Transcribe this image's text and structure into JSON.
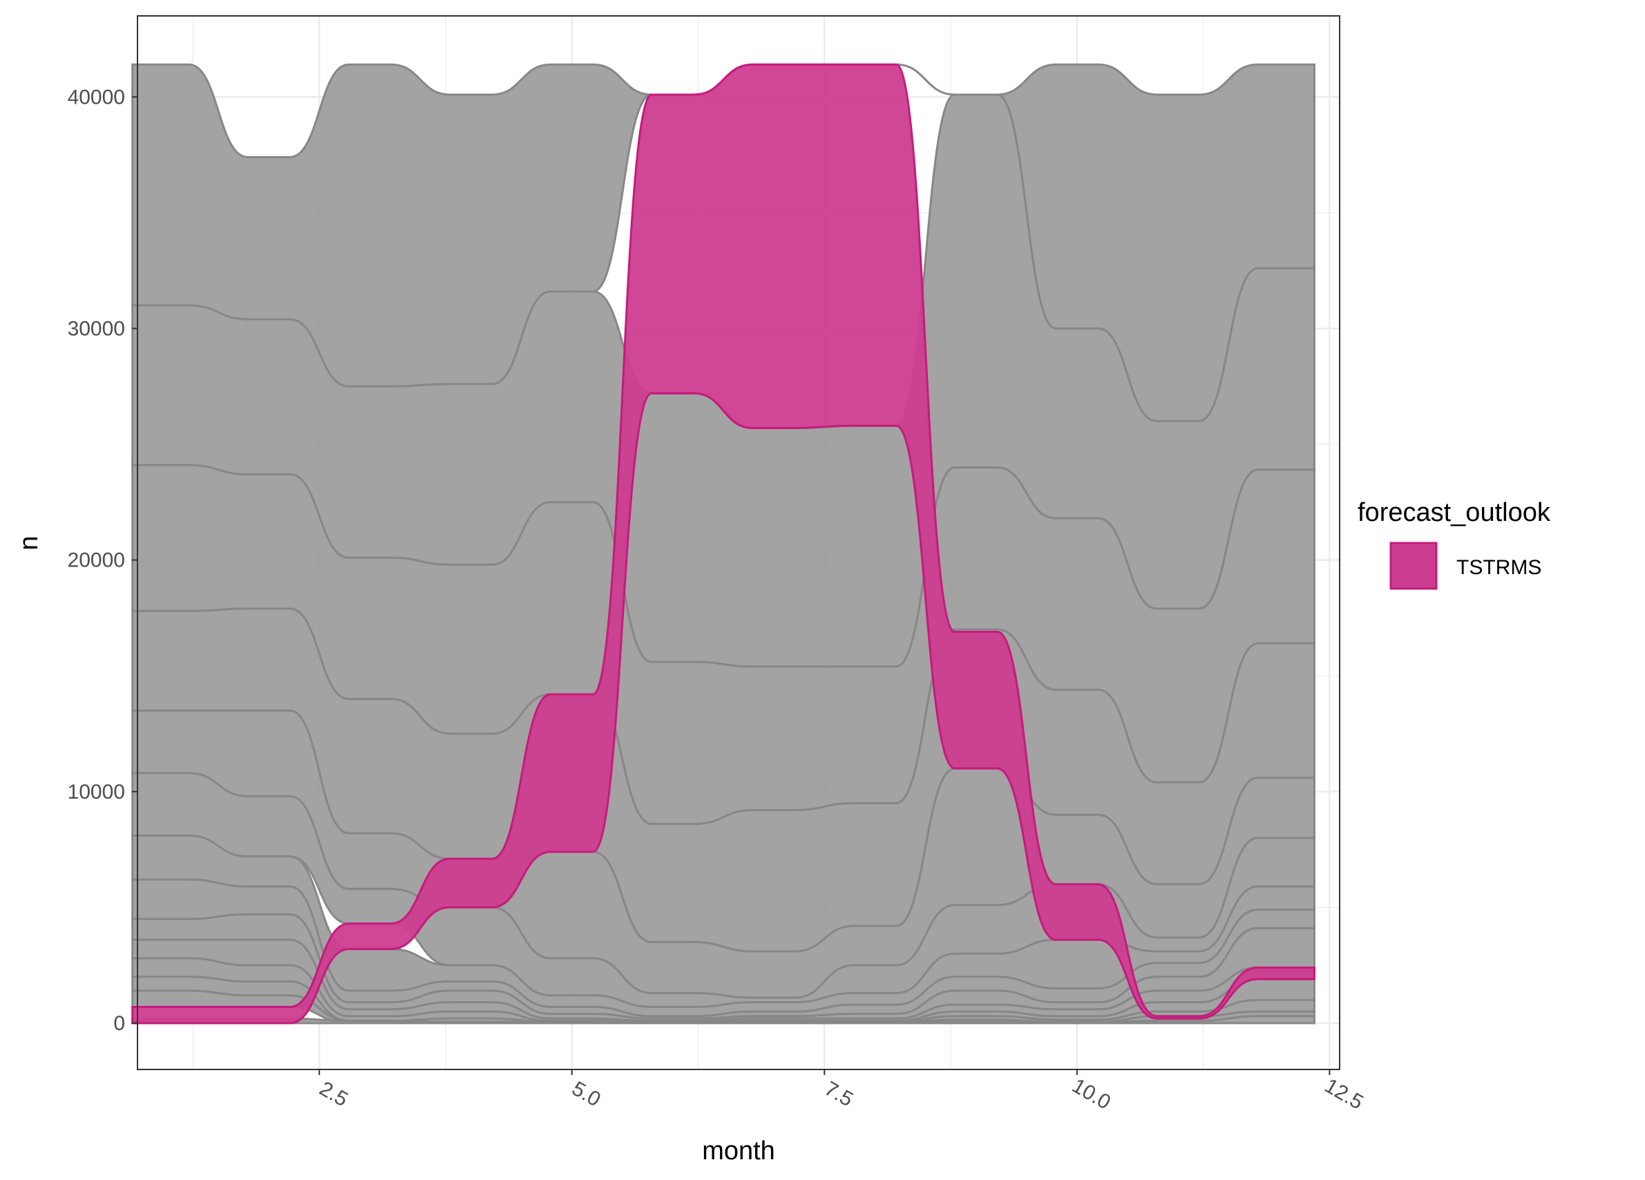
{
  "chart_data": {
    "type": "area",
    "subtype": "bump-chart (ranked stacked flows over months)",
    "title": "",
    "xlabel": "month",
    "ylabel": "n",
    "xlim": [
      0.7,
      12.6
    ],
    "ylim": [
      -2000,
      43500
    ],
    "x_ticks": [
      2.5,
      5.0,
      7.5,
      10.0,
      12.5
    ],
    "x_tick_labels": [
      "2.5",
      "5.0",
      "7.5",
      "10.0",
      "12.5"
    ],
    "y_ticks": [
      0,
      10000,
      20000,
      30000,
      40000
    ],
    "y_tick_labels": [
      "0",
      "10000",
      "20000",
      "30000",
      "40000"
    ],
    "x_tick_label_rotation_deg": -30,
    "grid": true,
    "theme": "bw",
    "colors": {
      "highlight_fill": "#CC3D8F",
      "highlight_stroke": "#C51B7D",
      "other_fill": "#9E9E9E",
      "other_stroke": "#878787",
      "grid": "#EBEBEB",
      "panel_border": "#333333"
    },
    "legend": {
      "title": "forecast_outlook",
      "position": "right",
      "entries": [
        "TSTRMS"
      ]
    },
    "x": [
      1,
      2,
      3,
      4,
      5,
      6,
      7,
      8,
      9,
      10,
      11,
      12
    ],
    "stack_totals": [
      41400,
      37400,
      41400,
      40100,
      41400,
      40100,
      41400,
      41400,
      40100,
      41400,
      40100,
      41400
    ],
    "highlight_series": {
      "name": "TSTRMS",
      "lower": [
        0,
        0,
        3200,
        5000,
        7400,
        27200,
        25700,
        25800,
        11000,
        3600,
        200,
        1900
      ],
      "upper": [
        700,
        700,
        4300,
        7100,
        14200,
        40100,
        41400,
        41400,
        16900,
        6000,
        300,
        2400
      ]
    },
    "other_series": [
      {
        "lower": [
          31000,
          30400,
          27500,
          27600,
          31600,
          40100,
          41400,
          41400,
          40100,
          30000,
          26000,
          32600
        ],
        "upper": [
          41400,
          37400,
          41400,
          40100,
          41400,
          40100,
          41400,
          41400,
          40100,
          41400,
          40100,
          41400
        ]
      },
      {
        "lower": [
          24100,
          23700,
          20100,
          19800,
          22500,
          15600,
          15400,
          15400,
          24000,
          21800,
          17900,
          23900
        ],
        "upper": [
          31000,
          30400,
          27500,
          27600,
          31600,
          27200,
          25700,
          25800,
          40100,
          30000,
          26000,
          32600
        ]
      },
      {
        "lower": [
          17800,
          17900,
          14000,
          12500,
          14200,
          8600,
          9200,
          9500,
          17000,
          14400,
          10400,
          16400
        ],
        "upper": [
          24100,
          23700,
          20100,
          19800,
          22500,
          15600,
          15400,
          15400,
          24000,
          21800,
          17900,
          23900
        ]
      },
      {
        "lower": [
          13500,
          13500,
          8200,
          7100,
          7400,
          3500,
          3100,
          4200,
          11000,
          9000,
          6000,
          10600
        ],
        "upper": [
          17800,
          17900,
          14000,
          12500,
          14200,
          8600,
          9200,
          9500,
          17000,
          14400,
          10400,
          16400
        ]
      },
      {
        "lower": [
          10800,
          9800,
          5800,
          5000,
          2800,
          1300,
          1100,
          2500,
          5100,
          6000,
          3700,
          8000
        ],
        "upper": [
          13500,
          13500,
          8200,
          7100,
          7400,
          3500,
          3100,
          4200,
          11000,
          9000,
          6000,
          10600
        ]
      },
      {
        "lower": [
          8100,
          7200,
          4300,
          2500,
          1200,
          700,
          900,
          1300,
          3000,
          3600,
          3100,
          5900
        ],
        "upper": [
          10800,
          9800,
          5800,
          5000,
          2800,
          1300,
          1100,
          2500,
          5100,
          6000,
          3700,
          8000
        ]
      },
      {
        "lower": [
          6200,
          5900,
          1400,
          1800,
          700,
          300,
          500,
          800,
          2000,
          1500,
          2600,
          4900
        ],
        "upper": [
          8100,
          7200,
          3200,
          2500,
          1200,
          700,
          900,
          1300,
          3000,
          3600,
          3100,
          5900
        ]
      },
      {
        "lower": [
          4500,
          4700,
          900,
          1400,
          400,
          200,
          300,
          400,
          1400,
          900,
          2000,
          4100
        ],
        "upper": [
          6200,
          5900,
          1400,
          1800,
          700,
          300,
          500,
          800,
          2000,
          1500,
          2600,
          4900
        ]
      },
      {
        "lower": [
          3600,
          3600,
          600,
          900,
          200,
          100,
          200,
          200,
          800,
          600,
          1400,
          2400
        ],
        "upper": [
          4500,
          4700,
          900,
          1400,
          400,
          200,
          300,
          400,
          1400,
          900,
          2000,
          4100
        ]
      },
      {
        "lower": [
          2800,
          2500,
          300,
          500,
          100,
          50,
          100,
          100,
          500,
          300,
          900,
          1900
        ],
        "upper": [
          3600,
          3600,
          600,
          900,
          200,
          100,
          200,
          200,
          800,
          600,
          1400,
          2400
        ]
      },
      {
        "lower": [
          2000,
          1800,
          100,
          200,
          50,
          0,
          50,
          50,
          300,
          150,
          500,
          1000
        ],
        "upper": [
          2800,
          2500,
          300,
          500,
          100,
          50,
          100,
          100,
          500,
          300,
          900,
          1900
        ]
      },
      {
        "lower": [
          1400,
          1200,
          0,
          50,
          0,
          0,
          0,
          0,
          150,
          50,
          300,
          500
        ],
        "upper": [
          2000,
          1800,
          100,
          200,
          50,
          50,
          50,
          50,
          300,
          150,
          500,
          1000
        ]
      },
      {
        "lower": [
          700,
          700,
          0,
          0,
          0,
          0,
          0,
          0,
          50,
          0,
          100,
          300
        ],
        "upper": [
          1400,
          1200,
          100,
          50,
          50,
          50,
          50,
          50,
          150,
          50,
          300,
          500
        ]
      },
      {
        "lower": [
          0,
          0,
          0,
          0,
          0,
          0,
          0,
          0,
          0,
          0,
          0,
          0
        ],
        "upper": [
          200,
          200,
          100,
          50,
          50,
          50,
          50,
          50,
          100,
          50,
          100,
          300
        ]
      }
    ]
  }
}
